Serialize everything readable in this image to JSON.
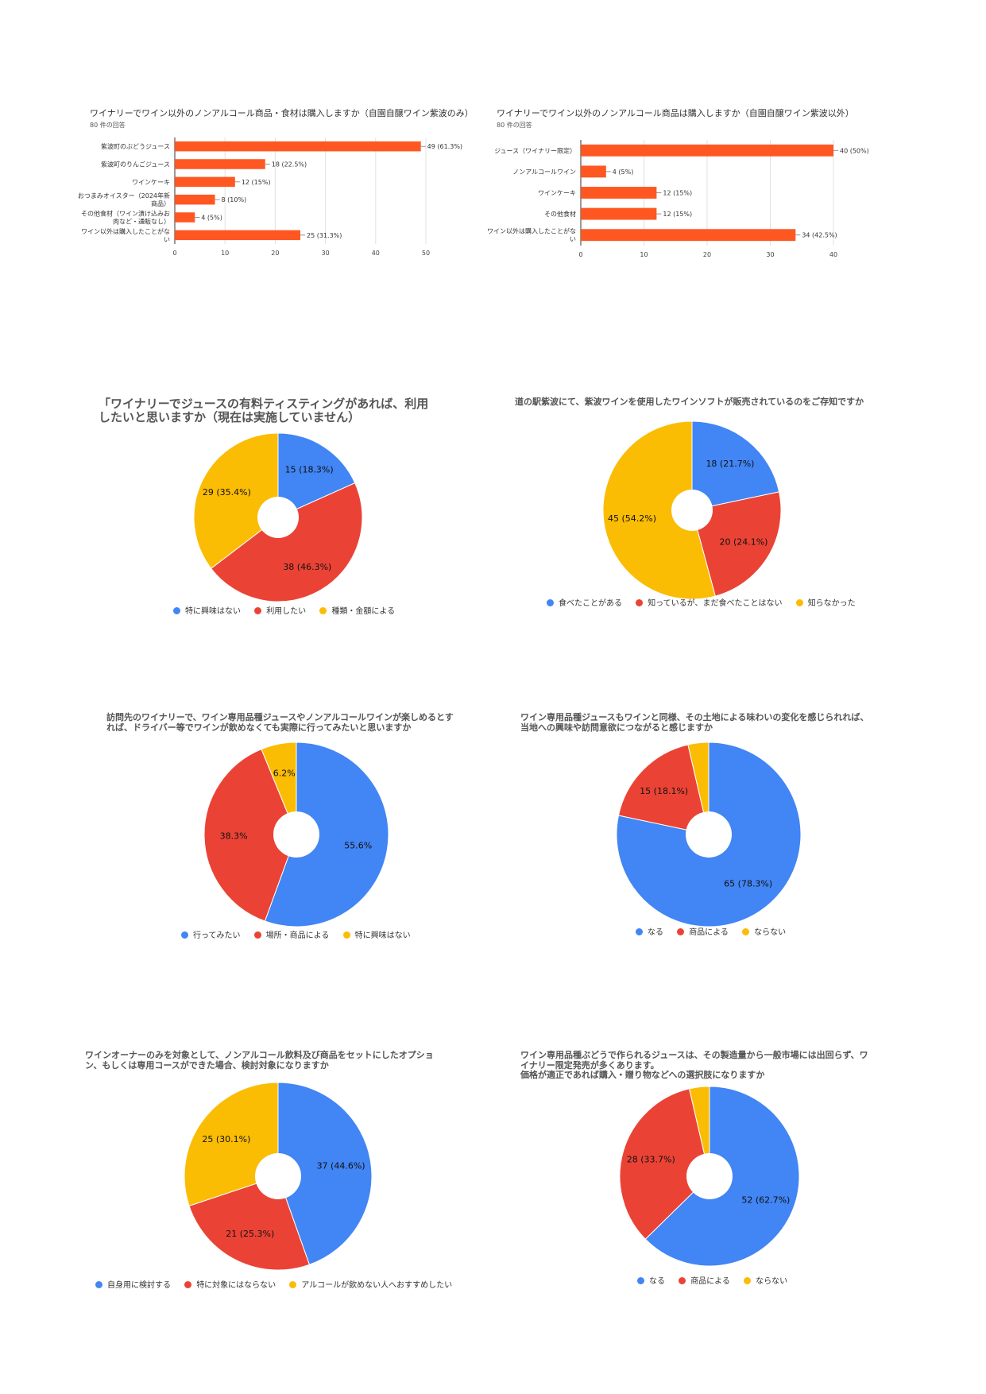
{
  "colors": {
    "bar": "#ff5722",
    "blue": "#4285f4",
    "red": "#ea4335",
    "yellow": "#fbbc04"
  },
  "chart_data": [
    {
      "type": "bar",
      "title": "ワイナリーでワイン以外のノンアルコール商品・食材は購入しますか（自園自醸ワイン紫波のみ）",
      "subtitle": "80 件の回答",
      "categories": [
        "紫波町のぶどうジュース",
        "紫波町のりんごジュース",
        "ワインケーキ",
        "おつまみオイスター（2024年新\n商品）",
        "その他食材（ワイン漬け込みお\n肉など・通販なし）",
        "ワイン以外は購入したことがな\nい"
      ],
      "values": [
        49,
        18,
        12,
        8,
        4,
        25
      ],
      "value_labels": [
        "49 (61.3%)",
        "18 (22.5%)",
        "12 (15%)",
        "8 (10%)",
        "4 (5%)",
        "25 (31.3%)"
      ],
      "xlim": [
        0,
        50
      ],
      "ticks": [
        0,
        10,
        20,
        30,
        40,
        50
      ]
    },
    {
      "type": "bar",
      "title": "ワイナリーでワイン以外のノンアルコール商品は購入しますか（自園自醸ワイン紫波以外）",
      "subtitle": "80 件の回答",
      "categories": [
        "ジュース（ワイナリー限定）",
        "ノンアルコールワイン",
        "ワインケーキ",
        "その他食材",
        "ワイン以外は購入したことがな\nい"
      ],
      "values": [
        40,
        4,
        12,
        12,
        34
      ],
      "value_labels": [
        "40 (50%)",
        "4 (5%)",
        "12 (15%)",
        "12 (15%)",
        "34 (42.5%)"
      ],
      "xlim": [
        0,
        40
      ],
      "ticks": [
        0,
        10,
        20,
        30,
        40
      ]
    },
    {
      "type": "pie",
      "title": "「ワイナリーでジュースの有料ティスティングがあれば、利用\nしたいと思いますか（現在は実施していません）",
      "slices": [
        {
          "label": "特に興味はない",
          "value": 15,
          "text": "15 (18.3%)",
          "color": "#4285f4"
        },
        {
          "label": "利用したい",
          "value": 38,
          "text": "38 (46.3%)",
          "color": "#ea4335"
        },
        {
          "label": "種類・金額による",
          "value": 29,
          "text": "29 (35.4%)",
          "color": "#fbbc04"
        }
      ]
    },
    {
      "type": "pie",
      "title": "道の駅紫波にて、紫波ワインを使用したワインソフトが販売されているのをご存知ですか",
      "slices": [
        {
          "label": "食べたことがある",
          "value": 18,
          "text": "18 (21.7%)",
          "color": "#4285f4"
        },
        {
          "label": "知っているが、まだ食べたことはない",
          "value": 20,
          "text": "20 (24.1%)",
          "color": "#ea4335"
        },
        {
          "label": "知らなかった",
          "value": 45,
          "text": "45 (54.2%)",
          "color": "#fbbc04"
        }
      ]
    },
    {
      "type": "pie",
      "title": "訪問先のワイナリーで、ワイン専用品種ジュースやノンアルコールワインが楽しめるとす\nれば、ドライバー等でワインが飲めなくても実際に行ってみたいと思いますか",
      "slices": [
        {
          "label": "行ってみたい",
          "value": 55.6,
          "text": "55.6%",
          "color": "#4285f4"
        },
        {
          "label": "場所・商品による",
          "value": 38.3,
          "text": "38.3%",
          "color": "#ea4335"
        },
        {
          "label": "特に興味はない",
          "value": 6.2,
          "text": "6.2%",
          "color": "#fbbc04"
        }
      ]
    },
    {
      "type": "pie",
      "title": "ワイン専用品種ジュースもワインと同様、その土地による味わいの変化を感じられれば、\n当地への興味や訪問意欲につながると感じますか",
      "slices": [
        {
          "label": "なる",
          "value": 65,
          "text": "65 (78.3%)",
          "color": "#4285f4"
        },
        {
          "label": "商品による",
          "value": 15,
          "text": "15 (18.1%)",
          "color": "#ea4335"
        },
        {
          "label": "ならない",
          "value": 3,
          "text": "",
          "color": "#fbbc04"
        }
      ]
    },
    {
      "type": "pie",
      "title": "ワインオーナーのみを対象として、ノンアルコール飲料及び商品をセットにしたオプショ\nン、もしくは専用コースができた場合、検討対象になりますか",
      "slices": [
        {
          "label": "自身用に検討する",
          "value": 37,
          "text": "37 (44.6%)",
          "color": "#4285f4"
        },
        {
          "label": "特に対象にはならない",
          "value": 21,
          "text": "21 (25.3%)",
          "color": "#ea4335"
        },
        {
          "label": "アルコールが飲めない人へおすすめしたい",
          "value": 25,
          "text": "25 (30.1%)",
          "color": "#fbbc04"
        }
      ]
    },
    {
      "type": "pie",
      "title": "ワイン専用品種ぶどうで作られるジュースは、その製造量から一般市場には出回らず、ワ\nイナリー限定発売が多くあります。\n価格が適正であれば購入・贈り物などへの選択肢になりますか",
      "slices": [
        {
          "label": "なる",
          "value": 52,
          "text": "52 (62.7%)",
          "color": "#4285f4"
        },
        {
          "label": "商品による",
          "value": 28,
          "text": "28 (33.7%)",
          "color": "#ea4335"
        },
        {
          "label": "ならない",
          "value": 3,
          "text": "",
          "color": "#fbbc04"
        }
      ]
    }
  ]
}
